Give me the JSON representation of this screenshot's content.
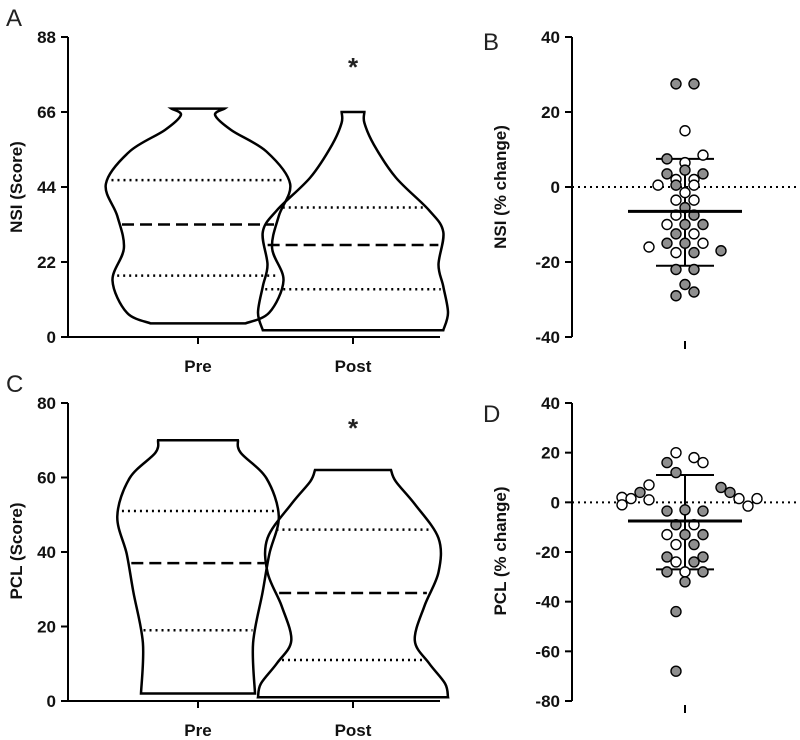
{
  "chart_data": [
    {
      "panel": "A",
      "type": "violin",
      "ylabel": "NSI (Score)",
      "yticks": [
        0,
        22,
        44,
        66,
        88
      ],
      "ylim": [
        0,
        88
      ],
      "categories": [
        "Pre",
        "Post"
      ],
      "violins": [
        {
          "name": "Pre",
          "min": 4,
          "max": 67,
          "q1": 18,
          "median": 33,
          "q3": 46
        },
        {
          "name": "Post",
          "min": 2,
          "max": 66,
          "q1": 14,
          "median": 27,
          "q3": 38
        }
      ],
      "annotation": "*"
    },
    {
      "panel": "B",
      "type": "scatter",
      "ylabel": "NSI (% change)",
      "yticks": [
        -40,
        -20,
        0,
        20,
        40
      ],
      "ylim": [
        -40,
        40
      ],
      "mean": -6.5,
      "sd_upper": 7.5,
      "sd_lower": -21,
      "points": [
        {
          "dx": -1,
          "y": 27.5,
          "group": "grey"
        },
        {
          "dx": 1,
          "y": 27.5,
          "group": "grey"
        },
        {
          "dx": 0,
          "y": 15,
          "group": "white"
        },
        {
          "dx": 2,
          "y": 8.5,
          "group": "white"
        },
        {
          "dx": -2,
          "y": 7.5,
          "group": "grey"
        },
        {
          "dx": 0,
          "y": 6.5,
          "group": "white"
        },
        {
          "dx": 0,
          "y": 4.5,
          "group": "grey"
        },
        {
          "dx": -2,
          "y": 3.5,
          "group": "grey"
        },
        {
          "dx": 2,
          "y": 3.5,
          "group": "grey"
        },
        {
          "dx": -1,
          "y": 2,
          "group": "white"
        },
        {
          "dx": 1,
          "y": 2,
          "group": "white"
        },
        {
          "dx": -3,
          "y": 0.5,
          "group": "white"
        },
        {
          "dx": -1,
          "y": 0.5,
          "group": "grey"
        },
        {
          "dx": 1,
          "y": 0.5,
          "group": "white"
        },
        {
          "dx": 0,
          "y": -1.5,
          "group": "white"
        },
        {
          "dx": -1,
          "y": -3.5,
          "group": "white"
        },
        {
          "dx": 1,
          "y": -3.5,
          "group": "white"
        },
        {
          "dx": 0,
          "y": -5.5,
          "group": "grey"
        },
        {
          "dx": -1,
          "y": -7.5,
          "group": "white"
        },
        {
          "dx": 1,
          "y": -7.5,
          "group": "grey"
        },
        {
          "dx": -2,
          "y": -10,
          "group": "white"
        },
        {
          "dx": 0,
          "y": -10,
          "group": "grey"
        },
        {
          "dx": 2,
          "y": -10,
          "group": "grey"
        },
        {
          "dx": -1,
          "y": -12.5,
          "group": "grey"
        },
        {
          "dx": 1,
          "y": -12.5,
          "group": "white"
        },
        {
          "dx": -2,
          "y": -15,
          "group": "grey"
        },
        {
          "dx": 0,
          "y": -15,
          "group": "grey"
        },
        {
          "dx": 2,
          "y": -15,
          "group": "white"
        },
        {
          "dx": -4,
          "y": -16,
          "group": "white"
        },
        {
          "dx": 4,
          "y": -17,
          "group": "grey"
        },
        {
          "dx": -1,
          "y": -17.5,
          "group": "white"
        },
        {
          "dx": 1,
          "y": -17.5,
          "group": "grey"
        },
        {
          "dx": -1,
          "y": -22,
          "group": "grey"
        },
        {
          "dx": 1,
          "y": -22,
          "group": "grey"
        },
        {
          "dx": 0,
          "y": -26,
          "group": "grey"
        },
        {
          "dx": -1,
          "y": -29,
          "group": "grey"
        },
        {
          "dx": 1,
          "y": -28,
          "group": "grey"
        }
      ]
    },
    {
      "panel": "C",
      "type": "violin",
      "ylabel": "PCL (Score)",
      "yticks": [
        0,
        20,
        40,
        60,
        80
      ],
      "ylim": [
        0,
        80
      ],
      "categories": [
        "Pre",
        "Post"
      ],
      "violins": [
        {
          "name": "Pre",
          "min": 2,
          "max": 70,
          "q1": 19,
          "median": 37,
          "q3": 51
        },
        {
          "name": "Post",
          "min": 1,
          "max": 62,
          "q1": 11,
          "median": 29,
          "q3": 46
        }
      ],
      "annotation": "*"
    },
    {
      "panel": "D",
      "type": "scatter",
      "ylabel": "PCL (% change)",
      "yticks": [
        -80,
        -60,
        -40,
        -20,
        0,
        20,
        40
      ],
      "ylim": [
        -80,
        40
      ],
      "mean": -7.5,
      "sd_upper": 11,
      "sd_lower": -27,
      "points": [
        {
          "dx": -1,
          "y": 20,
          "group": "white"
        },
        {
          "dx": 1,
          "y": 18,
          "group": "white"
        },
        {
          "dx": 2,
          "y": 16,
          "group": "white"
        },
        {
          "dx": -2,
          "y": 16,
          "group": "grey"
        },
        {
          "dx": -1,
          "y": 12,
          "group": "grey"
        },
        {
          "dx": -4,
          "y": 7,
          "group": "white"
        },
        {
          "dx": 4,
          "y": 6,
          "group": "grey"
        },
        {
          "dx": -5,
          "y": 4,
          "group": "grey"
        },
        {
          "dx": 5,
          "y": 4,
          "group": "grey"
        },
        {
          "dx": -7,
          "y": 2,
          "group": "white"
        },
        {
          "dx": -6,
          "y": 1.5,
          "group": "white"
        },
        {
          "dx": -4,
          "y": 1,
          "group": "white"
        },
        {
          "dx": 6,
          "y": 1.5,
          "group": "white"
        },
        {
          "dx": 8,
          "y": 1.5,
          "group": "white"
        },
        {
          "dx": -7,
          "y": -1,
          "group": "white"
        },
        {
          "dx": 7,
          "y": -1.5,
          "group": "white"
        },
        {
          "dx": 0,
          "y": -3,
          "group": "grey"
        },
        {
          "dx": -2,
          "y": -3.5,
          "group": "grey"
        },
        {
          "dx": 2,
          "y": -3.5,
          "group": "grey"
        },
        {
          "dx": -1,
          "y": -9,
          "group": "grey"
        },
        {
          "dx": 1,
          "y": -9,
          "group": "white"
        },
        {
          "dx": -2,
          "y": -13,
          "group": "white"
        },
        {
          "dx": 0,
          "y": -13,
          "group": "grey"
        },
        {
          "dx": 2,
          "y": -13,
          "group": "grey"
        },
        {
          "dx": -1,
          "y": -17,
          "group": "white"
        },
        {
          "dx": 1,
          "y": -17,
          "group": "grey"
        },
        {
          "dx": -2,
          "y": -22,
          "group": "grey"
        },
        {
          "dx": 2,
          "y": -22,
          "group": "grey"
        },
        {
          "dx": -1,
          "y": -24,
          "group": "white"
        },
        {
          "dx": 1,
          "y": -24,
          "group": "grey"
        },
        {
          "dx": -2,
          "y": -28,
          "group": "grey"
        },
        {
          "dx": 0,
          "y": -28,
          "group": "white"
        },
        {
          "dx": 2,
          "y": -28,
          "group": "grey"
        },
        {
          "dx": 0,
          "y": -32,
          "group": "grey"
        },
        {
          "dx": -1,
          "y": -44,
          "group": "grey"
        },
        {
          "dx": -1,
          "y": -68,
          "group": "grey"
        }
      ]
    }
  ],
  "colors": {
    "grey_marker": "#8e8e8e",
    "white_marker": "#ffffff",
    "ink": "#000000"
  }
}
